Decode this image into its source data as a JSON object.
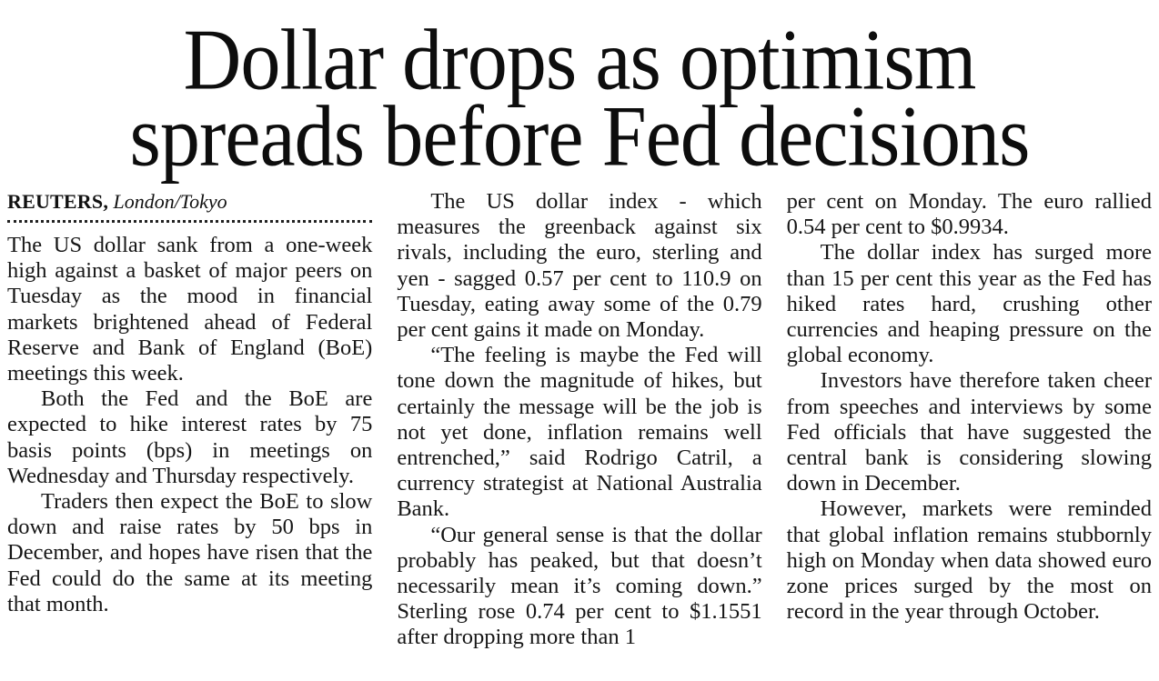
{
  "article": {
    "headline": {
      "line1": "Dollar drops as optimism",
      "line2": "spreads before Fed decisions"
    },
    "byline": {
      "source": "REUTERS,",
      "location": "London/Tokyo"
    },
    "colors": {
      "background": "#ffffff",
      "text": "#141414",
      "headline": "#0d0d0d"
    },
    "columns": [
      {
        "paragraphs": [
          {
            "text": "The US dollar sank from a one-week high against a basket of major peers on Tuesday as the mood in financial markets brightened ahead of Federal Reserve and Bank of England (BoE) meetings this week."
          },
          {
            "text": "Both the Fed and the BoE are expected to hike interest rates by 75 basis points (bps) in meetings on Wednesday and Thursday respectively."
          },
          {
            "text": "Traders then expect the BoE to slow down and raise rates by 50 bps in December, and hopes have risen that the Fed could do the same at its meeting that month."
          }
        ]
      },
      {
        "paragraphs": [
          {
            "text": "The US dollar index - which measures the greenback against six rivals, including the euro, sterling and yen - sagged 0.57 per cent to 110.9 on Tuesday, eating away some of the 0.79 per cent gains it made on Monday."
          },
          {
            "text": "“The feeling is maybe the Fed will tone down the magnitude of hikes, but certainly the message will be the job is not yet done, inflation remains well entrenched,” said Rodrigo Catril, a currency strategist at National Australia Bank."
          },
          {
            "text": "“Our general sense is that the dollar probably has peaked, but that doesn’t necessarily mean it’s coming down.” Sterling rose 0.74 per cent to $1.1551 after dropping more than 1"
          }
        ]
      },
      {
        "paragraphs": [
          {
            "text": "per cent on Monday. The euro rallied 0.54 per cent to $0.9934."
          },
          {
            "text": "The dollar index has surged more than 15 per cent this year as the Fed has hiked rates hard, crushing other currencies and heaping pressure on the global economy."
          },
          {
            "text": "Investors have therefore taken cheer from speeches and interviews by some Fed officials that have suggested the central bank is considering slowing down in December."
          },
          {
            "text": "However, markets were reminded that global inflation remains stubbornly high on Monday when data showed euro zone prices surged by the most on record in the year through October."
          }
        ]
      }
    ]
  }
}
